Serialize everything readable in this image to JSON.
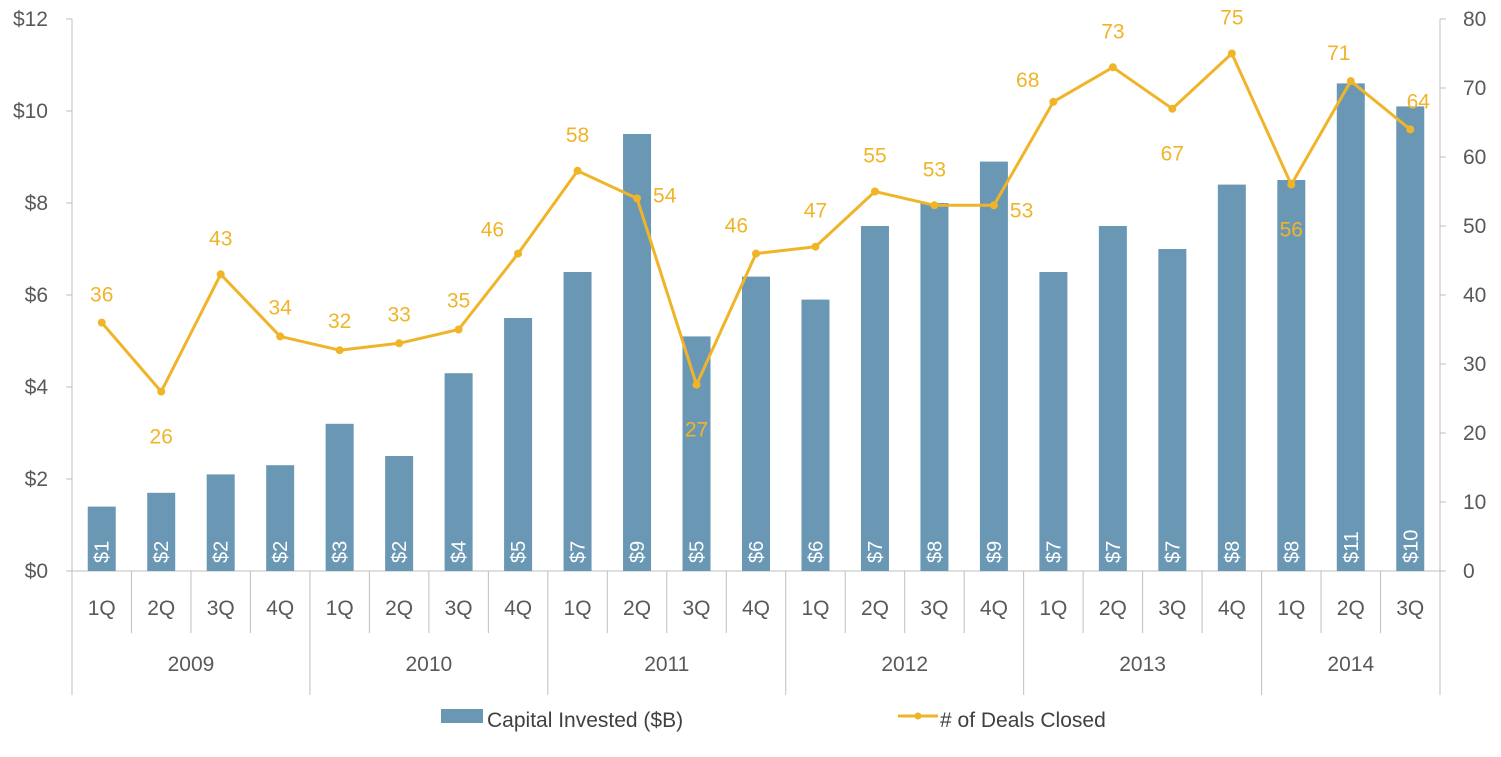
{
  "chart_data": {
    "type": "bar+line",
    "title": "",
    "categories": [
      "1Q",
      "2Q",
      "3Q",
      "4Q",
      "1Q",
      "2Q",
      "3Q",
      "4Q",
      "1Q",
      "2Q",
      "3Q",
      "4Q",
      "1Q",
      "2Q",
      "3Q",
      "4Q",
      "1Q",
      "2Q",
      "3Q",
      "4Q",
      "1Q",
      "2Q",
      "3Q"
    ],
    "years": [
      {
        "label": "2009",
        "count": 4
      },
      {
        "label": "2010",
        "count": 4
      },
      {
        "label": "2011",
        "count": 4
      },
      {
        "label": "2012",
        "count": 4
      },
      {
        "label": "2013",
        "count": 4
      },
      {
        "label": "2014",
        "count": 3
      }
    ],
    "series": [
      {
        "name": "Capital Invested ($B)",
        "type": "bar",
        "axis": "left",
        "color": "#6a98b4",
        "values": [
          1.4,
          1.7,
          2.1,
          2.3,
          3.2,
          2.5,
          4.3,
          5.5,
          6.5,
          9.5,
          5.1,
          6.4,
          5.9,
          7.5,
          8.0,
          8.9,
          6.5,
          7.5,
          7.0,
          8.4,
          8.5,
          10.6,
          10.1
        ],
        "labels": [
          "$1",
          "$2",
          "$2",
          "$2",
          "$3",
          "$2",
          "$4",
          "$5",
          "$7",
          "$9",
          "$5",
          "$6",
          "$6",
          "$7",
          "$8",
          "$9",
          "$7",
          "$7",
          "$7",
          "$8",
          "$8",
          "$11",
          "$10"
        ]
      },
      {
        "name": "# of Deals Closed",
        "type": "line",
        "axis": "right",
        "color": "#f0b429",
        "values": [
          36,
          26,
          43,
          34,
          32,
          33,
          35,
          46,
          58,
          54,
          27,
          46,
          47,
          55,
          53,
          53,
          68,
          73,
          67,
          75,
          56,
          71,
          64
        ],
        "labels": [
          "36",
          "26",
          "43",
          "34",
          "32",
          "33",
          "35",
          "46",
          "58",
          "54",
          "27",
          "46",
          "47",
          "55",
          "53",
          "53",
          "68",
          "73",
          "67",
          "75",
          "56",
          "71",
          "64"
        ]
      }
    ],
    "y_left": {
      "min": 0,
      "max": 12,
      "step": 2,
      "tick_labels": [
        "$0",
        "$2",
        "$4",
        "$6",
        "$8",
        "$10",
        "$12"
      ]
    },
    "y_right": {
      "min": 0,
      "max": 80,
      "step": 10,
      "tick_labels": [
        "0",
        "10",
        "20",
        "30",
        "40",
        "50",
        "60",
        "70",
        "80"
      ]
    },
    "grid": false,
    "legend": {
      "position": "bottom",
      "entries": [
        "Capital Invested ($B)",
        "# of Deals Closed"
      ]
    }
  }
}
